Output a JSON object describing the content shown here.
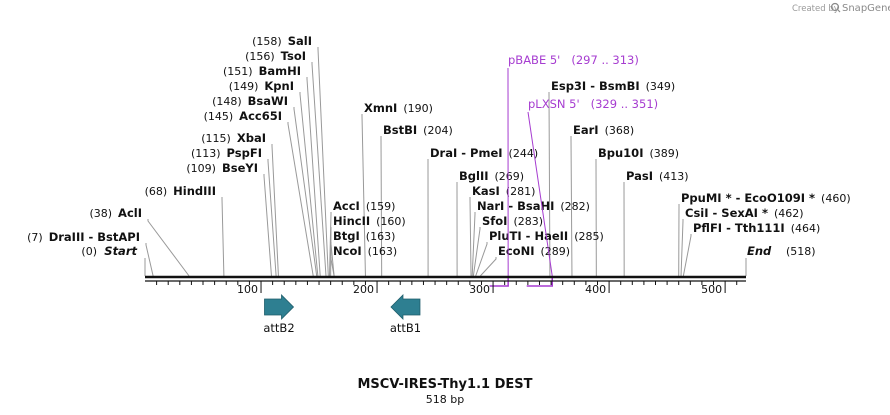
{
  "header": {
    "credit": "Created by",
    "brand": "SnapGene"
  },
  "map": {
    "title": "MSCV-IRES-Thy1.1 DEST",
    "length_label": "518 bp",
    "length": 518,
    "start_label": "Start",
    "start_pos": "(0)",
    "end_label": "End",
    "end_pos": "(518)"
  },
  "ruler": {
    "ticks": [
      "100",
      "200",
      "300",
      "400",
      "500"
    ]
  },
  "sites": [
    {
      "name": "DraIII",
      "name2": "BstAPI",
      "pos": "(7)",
      "bp": 7
    },
    {
      "name": "AclI",
      "pos": "(38)",
      "bp": 38
    },
    {
      "name": "HindIII",
      "pos": "(68)",
      "bp": 68
    },
    {
      "name": "BseYI",
      "pos": "(109)",
      "bp": 109
    },
    {
      "name": "PspFI",
      "pos": "(113)",
      "bp": 113
    },
    {
      "name": "XbaI",
      "pos": "(115)",
      "bp": 115
    },
    {
      "name": "Acc65I",
      "pos": "(145)",
      "bp": 145
    },
    {
      "name": "BsaWI",
      "pos": "(148)",
      "bp": 148
    },
    {
      "name": "KpnI",
      "pos": "(149)",
      "bp": 149
    },
    {
      "name": "BamHI",
      "pos": "(151)",
      "bp": 151
    },
    {
      "name": "TsoI",
      "pos": "(156)",
      "bp": 156
    },
    {
      "name": "SalI",
      "pos": "(158)",
      "bp": 158
    },
    {
      "name": "NcoI",
      "pos": "(163)",
      "bp": 163
    },
    {
      "name": "BtgI",
      "pos": "(163)",
      "bp": 163
    },
    {
      "name": "HincII",
      "pos": "(160)",
      "bp": 160
    },
    {
      "name": "AccI",
      "pos": "(159)",
      "bp": 159
    },
    {
      "name": "BstBI",
      "pos": "(204)",
      "bp": 204
    },
    {
      "name": "XmnI",
      "pos": "(190)",
      "bp": 190
    },
    {
      "name": "DraI",
      "name2": "PmeI",
      "pos": "(244)",
      "bp": 244
    },
    {
      "name": "BglII",
      "pos": "(269)",
      "bp": 269
    },
    {
      "name": "KasI",
      "pos": "(281)",
      "bp": 281
    },
    {
      "name": "NarI",
      "name2": "BsaHI",
      "pos": "(282)",
      "bp": 282
    },
    {
      "name": "SfoI",
      "pos": "(283)",
      "bp": 283
    },
    {
      "name": "PluTI",
      "name2": "HaeII",
      "pos": "(285)",
      "bp": 285
    },
    {
      "name": "EcoNI",
      "pos": "(289)",
      "bp": 289
    },
    {
      "name": "Esp3I",
      "name2": "BsmBI",
      "pos": "(349)",
      "bp": 349
    },
    {
      "name": "EarI",
      "pos": "(368)",
      "bp": 368
    },
    {
      "name": "Bpu10I",
      "pos": "(389)",
      "bp": 389
    },
    {
      "name": "PasI",
      "pos": "(413)",
      "bp": 413
    },
    {
      "name": "PpuMI *",
      "name2": "EcoO109I *",
      "pos": "(460)",
      "bp": 460
    },
    {
      "name": "CsiI",
      "name2": "SexAI *",
      "pos": "(462)",
      "bp": 462
    },
    {
      "name": "PflFI",
      "name2": "Tth111I",
      "pos": "(464)",
      "bp": 464
    }
  ],
  "primers": [
    {
      "name": "pBABE 5'",
      "range": "(297 .. 313)",
      "start": 297,
      "end": 313
    },
    {
      "name": "pLXSN 5'",
      "range": "(329 .. 351)",
      "start": 329,
      "end": 351
    }
  ],
  "features": [
    {
      "name": "attB2",
      "start": 103,
      "end": 128,
      "direction": "right"
    },
    {
      "name": "attB1",
      "start": 212,
      "end": 237,
      "direction": "left"
    }
  ],
  "colors": {
    "primer": "#a63cd0",
    "feature": "#2e7f91",
    "backbone": "#111111"
  }
}
